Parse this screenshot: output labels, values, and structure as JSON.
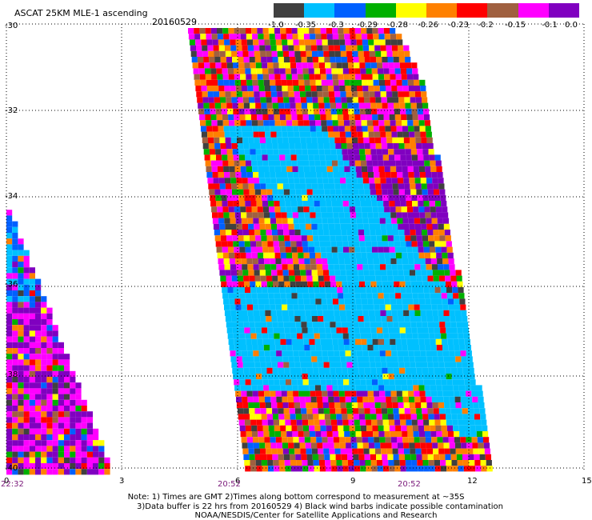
{
  "header": {
    "title": "ASCAT 25KM MLE-1 ascending",
    "date": "20160529"
  },
  "colorbar": {
    "colors": [
      "#404040",
      "#00c0ff",
      "#0060ff",
      "#00b000",
      "#ffff00",
      "#ff8000",
      "#ff0000",
      "#a06040",
      "#ff00ff",
      "#8000c0"
    ],
    "labels": [
      "-1.0",
      "-0.35",
      "-0.3",
      "-0.29",
      "-0.28",
      "-0.26",
      "-0.23",
      "-0.2",
      "-0.15",
      "-0.1",
      "0.0"
    ]
  },
  "axes": {
    "lat_labels": [
      "-30",
      "-32",
      "-34",
      "-36",
      "-38",
      "-40"
    ],
    "lon_labels": [
      "0",
      "3",
      "6",
      "9",
      "12",
      "15"
    ],
    "times": [
      "22:32",
      "20:52",
      "20:52"
    ]
  },
  "notes": {
    "line1": "Note: 1) Times are GMT 2)Times along bottom correspond to measurement at ~35S",
    "line2": "3)Data buffer is 22 hrs from 20160529 4) Black wind barbs indicate possible contamination",
    "line3": "NOAA/NESDIS/Center for Satellite Applications and Research"
  }
}
